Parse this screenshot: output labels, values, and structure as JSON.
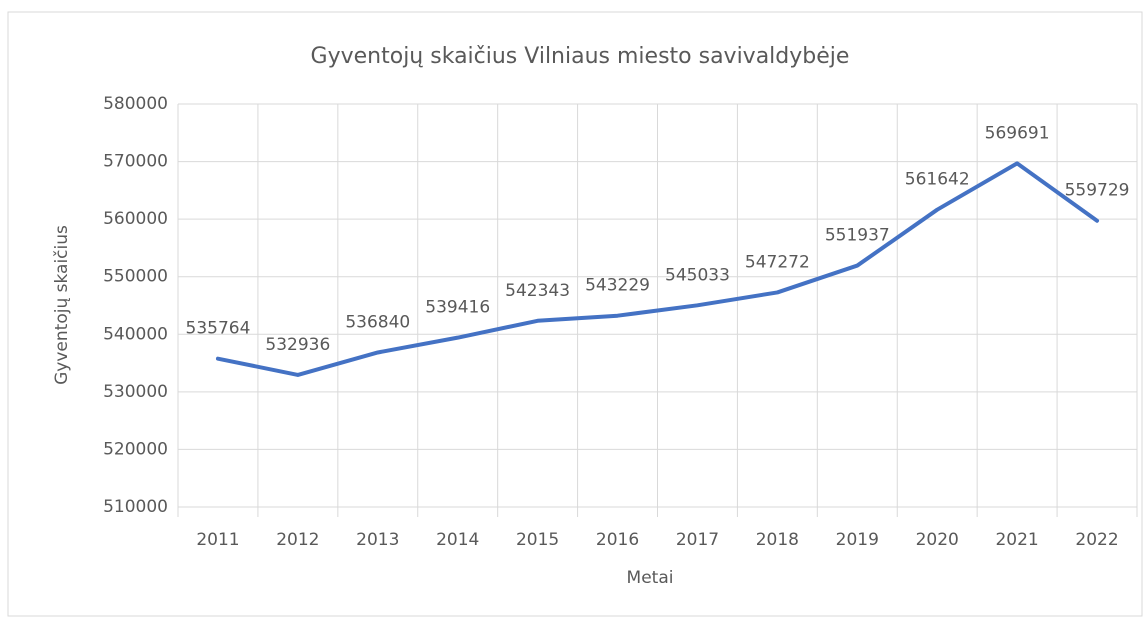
{
  "chart_data": {
    "type": "line",
    "title": "Gyventojų skaičius Vilniaus miesto savivaldybėje",
    "x_label": "Metai",
    "y_label": "Gyventojų skaičius",
    "categories": [
      "2011",
      "2012",
      "2013",
      "2014",
      "2015",
      "2016",
      "2017",
      "2018",
      "2019",
      "2020",
      "2021",
      "2022"
    ],
    "series": [
      {
        "name": "Gyventojų skaičius",
        "color": "#4472c4",
        "values": [
          535764,
          532936,
          536840,
          539416,
          542343,
          543229,
          545033,
          547272,
          551937,
          561642,
          569691,
          559729
        ]
      }
    ],
    "ylim": [
      510000,
      580000
    ],
    "yticks": [
      510000,
      520000,
      530000,
      540000,
      550000,
      560000,
      570000,
      580000
    ],
    "grid": true
  }
}
